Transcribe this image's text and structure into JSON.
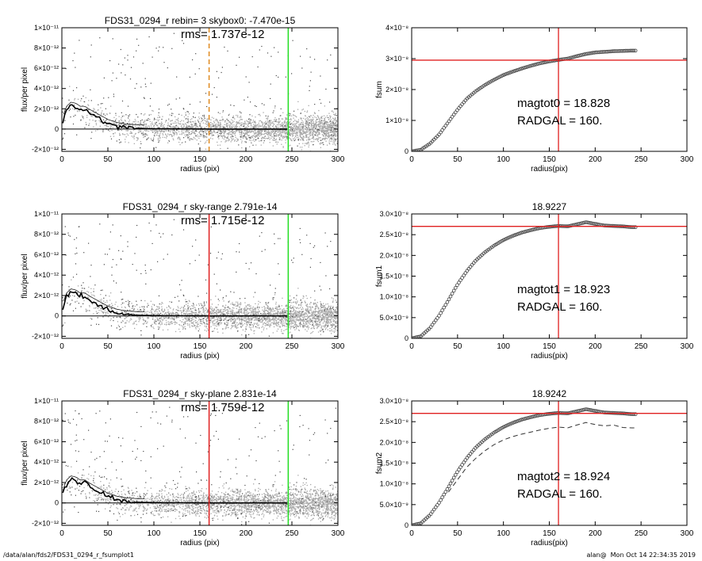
{
  "footer": {
    "path": "/data/alan/fds2/FDS31_0294_r_fsumplot1",
    "stamp": "alan@  Mon Oct 14 22:34:35 2019"
  },
  "colors": {
    "scatter_light": "#a8a8a8",
    "scatter_dark": "#4a4a4a",
    "profile": "#000000",
    "red_marker": "#e02020",
    "green_marker": "#22dd22",
    "orange_marker": "#e08a20",
    "curve_marker": "#444444"
  },
  "chart_data": [
    {
      "type": "scatter",
      "title": "FDS31_0294_r rebin= 3    skybox0: -7.470e-15",
      "annotation": "rms= 1.737e-12",
      "xlabel": "radius (pix)",
      "ylabel": "flux/per pixel",
      "xlim": [
        0,
        300
      ],
      "ylim": [
        -2.2e-12,
        1e-11
      ],
      "xticks": [
        "0",
        "50",
        "100",
        "150",
        "200",
        "250",
        "300"
      ],
      "yticks": [
        {
          "value": -2e-12,
          "label": "-2×10⁻¹²"
        },
        {
          "value": 0,
          "label": "0"
        },
        {
          "value": 2e-12,
          "label": "2×10⁻¹²"
        },
        {
          "value": 4e-12,
          "label": "4×10⁻¹²"
        },
        {
          "value": 6e-12,
          "label": "6×10⁻¹²"
        },
        {
          "value": 8e-12,
          "label": "8×10⁻¹²"
        },
        {
          "value": 1e-11,
          "label": "1×10⁻¹¹"
        }
      ],
      "vlines": [
        {
          "x": 160,
          "color": "orange",
          "style": "dashed"
        },
        {
          "x": 246,
          "color": "green",
          "style": "solid"
        }
      ],
      "profile": {
        "x": [
          0,
          5,
          10,
          15,
          20,
          25,
          30,
          40,
          50,
          60,
          70,
          80,
          90,
          100,
          120,
          140,
          160,
          180,
          200,
          220,
          246
        ],
        "y": [
          6e-13,
          1.9e-12,
          2.3e-12,
          2.2e-12,
          1.9e-12,
          1.9e-12,
          1.6e-12,
          1.1e-12,
          6e-13,
          3e-13,
          1.5e-13,
          8e-14,
          5e-14,
          3e-14,
          2e-14,
          1e-14,
          0.0,
          0.0,
          0.0,
          0.0,
          0.0
        ]
      }
    },
    {
      "type": "line",
      "xlabel": "radius(pix)",
      "ylabel": "fsum",
      "xlim": [
        0,
        300
      ],
      "ylim": [
        0,
        4e-08
      ],
      "xticks": [
        "0",
        "50",
        "100",
        "150",
        "200",
        "250",
        "300"
      ],
      "yticks": [
        {
          "value": 0,
          "label": "0"
        },
        {
          "value": 1e-08,
          "label": "1×10⁻⁸"
        },
        {
          "value": 2e-08,
          "label": "2×10⁻⁸"
        },
        {
          "value": 3e-08,
          "label": "3×10⁻⁸"
        },
        {
          "value": 4e-08,
          "label": "4×10⁻⁸"
        }
      ],
      "hline": 2.95e-08,
      "vline": 160,
      "annotations": [
        "magtot0 =  18.828",
        "RADGAL =    160."
      ],
      "curve": {
        "x": [
          0,
          10,
          20,
          30,
          40,
          50,
          60,
          70,
          80,
          90,
          100,
          110,
          120,
          130,
          140,
          150,
          160,
          170,
          180,
          190,
          200,
          210,
          220,
          230,
          240,
          245
        ],
        "y": [
          0,
          5e-10,
          2.5e-09,
          5.5e-09,
          9.5e-09,
          1.35e-08,
          1.7e-08,
          1.95e-08,
          2.15e-08,
          2.32e-08,
          2.47e-08,
          2.58e-08,
          2.68e-08,
          2.77e-08,
          2.85e-08,
          2.91e-08,
          2.96e-08,
          3e-08,
          3.08e-08,
          3.15e-08,
          3.2e-08,
          3.22e-08,
          3.24e-08,
          3.25e-08,
          3.26e-08,
          3.26e-08
        ]
      }
    },
    {
      "type": "scatter",
      "title": "FDS31_0294_r sky-range  2.791e-14",
      "annotation": "rms= 1.715e-12",
      "xlabel": "radius (pix)",
      "ylabel": "flux/per pixel",
      "xlim": [
        0,
        300
      ],
      "ylim": [
        -2.2e-12,
        1e-11
      ],
      "xticks": [
        "0",
        "50",
        "100",
        "150",
        "200",
        "250",
        "300"
      ],
      "yticks": [
        {
          "value": -2e-12,
          "label": "-2×10⁻¹²"
        },
        {
          "value": 0,
          "label": "0"
        },
        {
          "value": 2e-12,
          "label": "2×10⁻¹²"
        },
        {
          "value": 4e-12,
          "label": "4×10⁻¹²"
        },
        {
          "value": 6e-12,
          "label": "6×10⁻¹²"
        },
        {
          "value": 8e-12,
          "label": "8×10⁻¹²"
        },
        {
          "value": 1e-11,
          "label": "1×10⁻¹¹"
        }
      ],
      "vlines": [
        {
          "x": 160,
          "color": "red",
          "style": "solid"
        },
        {
          "x": 246,
          "color": "green",
          "style": "solid"
        }
      ],
      "profile": {
        "x": [
          0,
          5,
          10,
          15,
          20,
          25,
          30,
          40,
          50,
          60,
          70,
          80,
          90,
          100,
          120,
          140,
          160,
          180,
          200,
          220,
          246
        ],
        "y": [
          6e-13,
          1.9e-12,
          2.3e-12,
          2.2e-12,
          1.9e-12,
          1.9e-12,
          1.6e-12,
          1.1e-12,
          6e-13,
          3e-13,
          1.5e-13,
          8e-14,
          5e-14,
          3e-14,
          2e-14,
          1e-14,
          0.0,
          0.0,
          0.0,
          0.0,
          0.0
        ]
      }
    },
    {
      "type": "line",
      "title": "18.9227",
      "xlabel": "radius(pix)",
      "ylabel": "fsum1",
      "xlim": [
        0,
        300
      ],
      "ylim": [
        0,
        3e-08
      ],
      "xticks": [
        "0",
        "50",
        "100",
        "150",
        "200",
        "250",
        "300"
      ],
      "yticks": [
        {
          "value": 0,
          "label": "0"
        },
        {
          "value": 5e-09,
          "label": "5.0×10⁻⁹"
        },
        {
          "value": 1e-08,
          "label": "1.0×10⁻⁸"
        },
        {
          "value": 1.5e-08,
          "label": "1.5×10⁻⁸"
        },
        {
          "value": 2e-08,
          "label": "2.0×10⁻⁸"
        },
        {
          "value": 2.5e-08,
          "label": "2.5×10⁻⁸"
        },
        {
          "value": 3e-08,
          "label": "3.0×10⁻⁸"
        }
      ],
      "hline": 2.7e-08,
      "vline": 160,
      "annotations": [
        "magtot1 =  18.923",
        "RADGAL =    160."
      ],
      "curve": {
        "x": [
          0,
          10,
          20,
          30,
          40,
          50,
          60,
          70,
          80,
          90,
          100,
          110,
          120,
          130,
          140,
          150,
          160,
          170,
          180,
          190,
          200,
          210,
          220,
          230,
          240,
          245
        ],
        "y": [
          0,
          5e-10,
          2.5e-09,
          5.5e-09,
          9.2e-09,
          1.3e-08,
          1.62e-08,
          1.88e-08,
          2.08e-08,
          2.24e-08,
          2.37e-08,
          2.47e-08,
          2.55e-08,
          2.61e-08,
          2.66e-08,
          2.69e-08,
          2.71e-08,
          2.7e-08,
          2.75e-08,
          2.8e-08,
          2.76e-08,
          2.72e-08,
          2.71e-08,
          2.7e-08,
          2.68e-08,
          2.68e-08
        ]
      }
    },
    {
      "type": "scatter",
      "title": "FDS31_0294_r sky-plane  2.831e-14",
      "annotation": "rms= 1.759e-12",
      "xlabel": "radius (pix)",
      "ylabel": "flux/per pixel",
      "xlim": [
        0,
        300
      ],
      "ylim": [
        -2.2e-12,
        1e-11
      ],
      "xticks": [
        "0",
        "50",
        "100",
        "150",
        "200",
        "250",
        "300"
      ],
      "yticks": [
        {
          "value": -2e-12,
          "label": "-2×10⁻¹²"
        },
        {
          "value": 0,
          "label": "0"
        },
        {
          "value": 2e-12,
          "label": "2×10⁻¹²"
        },
        {
          "value": 4e-12,
          "label": "4×10⁻¹²"
        },
        {
          "value": 6e-12,
          "label": "6×10⁻¹²"
        },
        {
          "value": 8e-12,
          "label": "8×10⁻¹²"
        },
        {
          "value": 1e-11,
          "label": "1×10⁻¹¹"
        }
      ],
      "vlines": [
        {
          "x": 160,
          "color": "red",
          "style": "solid"
        },
        {
          "x": 246,
          "color": "green",
          "style": "solid"
        }
      ],
      "profile": {
        "x": [
          0,
          5,
          10,
          15,
          20,
          25,
          30,
          40,
          50,
          60,
          70,
          80,
          90,
          100,
          120,
          140,
          160,
          180,
          200,
          220,
          246
        ],
        "y": [
          6e-13,
          1.9e-12,
          2.3e-12,
          2.2e-12,
          1.9e-12,
          1.9e-12,
          1.6e-12,
          1.1e-12,
          6e-13,
          3e-13,
          1.5e-13,
          8e-14,
          5e-14,
          3e-14,
          2e-14,
          1e-14,
          0.0,
          0.0,
          0.0,
          0.0,
          0.0
        ]
      }
    },
    {
      "type": "line",
      "title": "18.9242",
      "xlabel": "radius(pix)",
      "ylabel": "fsum2",
      "xlim": [
        0,
        300
      ],
      "ylim": [
        0,
        3e-08
      ],
      "xticks": [
        "0",
        "50",
        "100",
        "150",
        "200",
        "250",
        "300"
      ],
      "yticks": [
        {
          "value": 0,
          "label": "0"
        },
        {
          "value": 5e-09,
          "label": "5.0×10⁻⁹"
        },
        {
          "value": 1e-08,
          "label": "1.0×10⁻⁸"
        },
        {
          "value": 1.5e-08,
          "label": "1.5×10⁻⁸"
        },
        {
          "value": 2e-08,
          "label": "2.0×10⁻⁸"
        },
        {
          "value": 2.5e-08,
          "label": "2.5×10⁻⁸"
        },
        {
          "value": 3e-08,
          "label": "3.0×10⁻⁸"
        }
      ],
      "hline": 2.7e-08,
      "vline": 160,
      "annotations": [
        "magtot2 =  18.924",
        "RADGAL =    160."
      ],
      "curve": {
        "x": [
          0,
          10,
          20,
          30,
          40,
          50,
          60,
          70,
          80,
          90,
          100,
          110,
          120,
          130,
          140,
          150,
          160,
          170,
          180,
          190,
          200,
          210,
          220,
          230,
          240,
          245
        ],
        "y": [
          0,
          5e-10,
          2.5e-09,
          5.5e-09,
          9.2e-09,
          1.3e-08,
          1.62e-08,
          1.88e-08,
          2.08e-08,
          2.24e-08,
          2.37e-08,
          2.47e-08,
          2.55e-08,
          2.61e-08,
          2.66e-08,
          2.69e-08,
          2.71e-08,
          2.7e-08,
          2.75e-08,
          2.8e-08,
          2.76e-08,
          2.72e-08,
          2.71e-08,
          2.7e-08,
          2.68e-08,
          2.68e-08
        ]
      },
      "dashed_curve": {
        "x": [
          40,
          50,
          60,
          70,
          80,
          90,
          100,
          110,
          120,
          130,
          140,
          150,
          160,
          170,
          180,
          190,
          200,
          210,
          220,
          230,
          240,
          245
        ],
        "y": [
          8e-09,
          1.1e-08,
          1.4e-08,
          1.62e-08,
          1.8e-08,
          1.95e-08,
          2.06e-08,
          2.14e-08,
          2.2e-08,
          2.25e-08,
          2.3e-08,
          2.34e-08,
          2.37e-08,
          2.35e-08,
          2.42e-08,
          2.48e-08,
          2.43e-08,
          2.4e-08,
          2.42e-08,
          2.36e-08,
          2.35e-08,
          2.35e-08
        ]
      }
    }
  ]
}
